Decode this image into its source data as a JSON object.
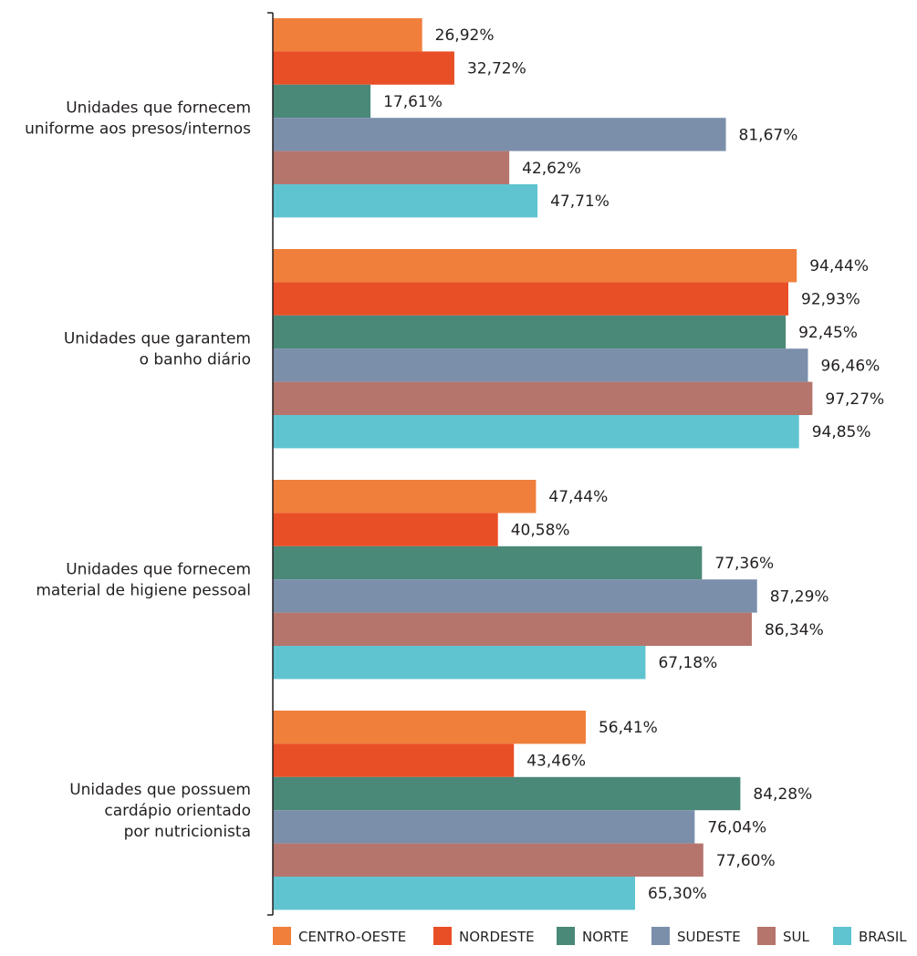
{
  "chart_data": {
    "type": "bar",
    "orientation": "horizontal",
    "xlim": [
      0,
      100
    ],
    "grid": false,
    "legend_position": "bottom",
    "categories": [
      [
        "Unidades que fornecem",
        "uniforme aos presos/internos"
      ],
      [
        "Unidades que garantem",
        "o banho diário"
      ],
      [
        "Unidades que fornecem",
        "material de higiene pessoal"
      ],
      [
        "Unidades que possuem",
        "cardápio orientado",
        "por nutricionista"
      ]
    ],
    "series": [
      {
        "name": "CENTRO-OESTE",
        "color": "#f07f3c",
        "values": [
          26.92,
          94.44,
          47.44,
          56.41
        ],
        "labels": [
          "26,92%",
          "94,44%",
          "47,44%",
          "56,41%"
        ]
      },
      {
        "name": "NORDESTE",
        "color": "#e94f26",
        "values": [
          32.72,
          92.93,
          40.58,
          43.46
        ],
        "labels": [
          "32,72%",
          "92,93%",
          "40,58%",
          "43,46%"
        ]
      },
      {
        "name": "NORTE",
        "color": "#4a8878",
        "values": [
          17.61,
          92.45,
          77.36,
          84.28
        ],
        "labels": [
          "17,61%",
          "92,45%",
          "77,36%",
          "84,28%"
        ]
      },
      {
        "name": "SUDESTE",
        "color": "#7b8fab",
        "values": [
          81.67,
          96.46,
          87.29,
          76.04
        ],
        "labels": [
          "81,67%",
          "96,46%",
          "87,29%",
          "76,04%"
        ]
      },
      {
        "name": "SUL",
        "color": "#b5756d",
        "values": [
          42.62,
          97.27,
          86.34,
          77.6
        ],
        "labels": [
          "42,62%",
          "97,27%",
          "86,34%",
          "77,60%"
        ]
      },
      {
        "name": "BRASIL",
        "color": "#5fc4d0",
        "values": [
          47.71,
          94.85,
          67.18,
          65.3
        ],
        "labels": [
          "47,71%",
          "94,85%",
          "67,18%",
          "65,30%"
        ]
      }
    ]
  }
}
